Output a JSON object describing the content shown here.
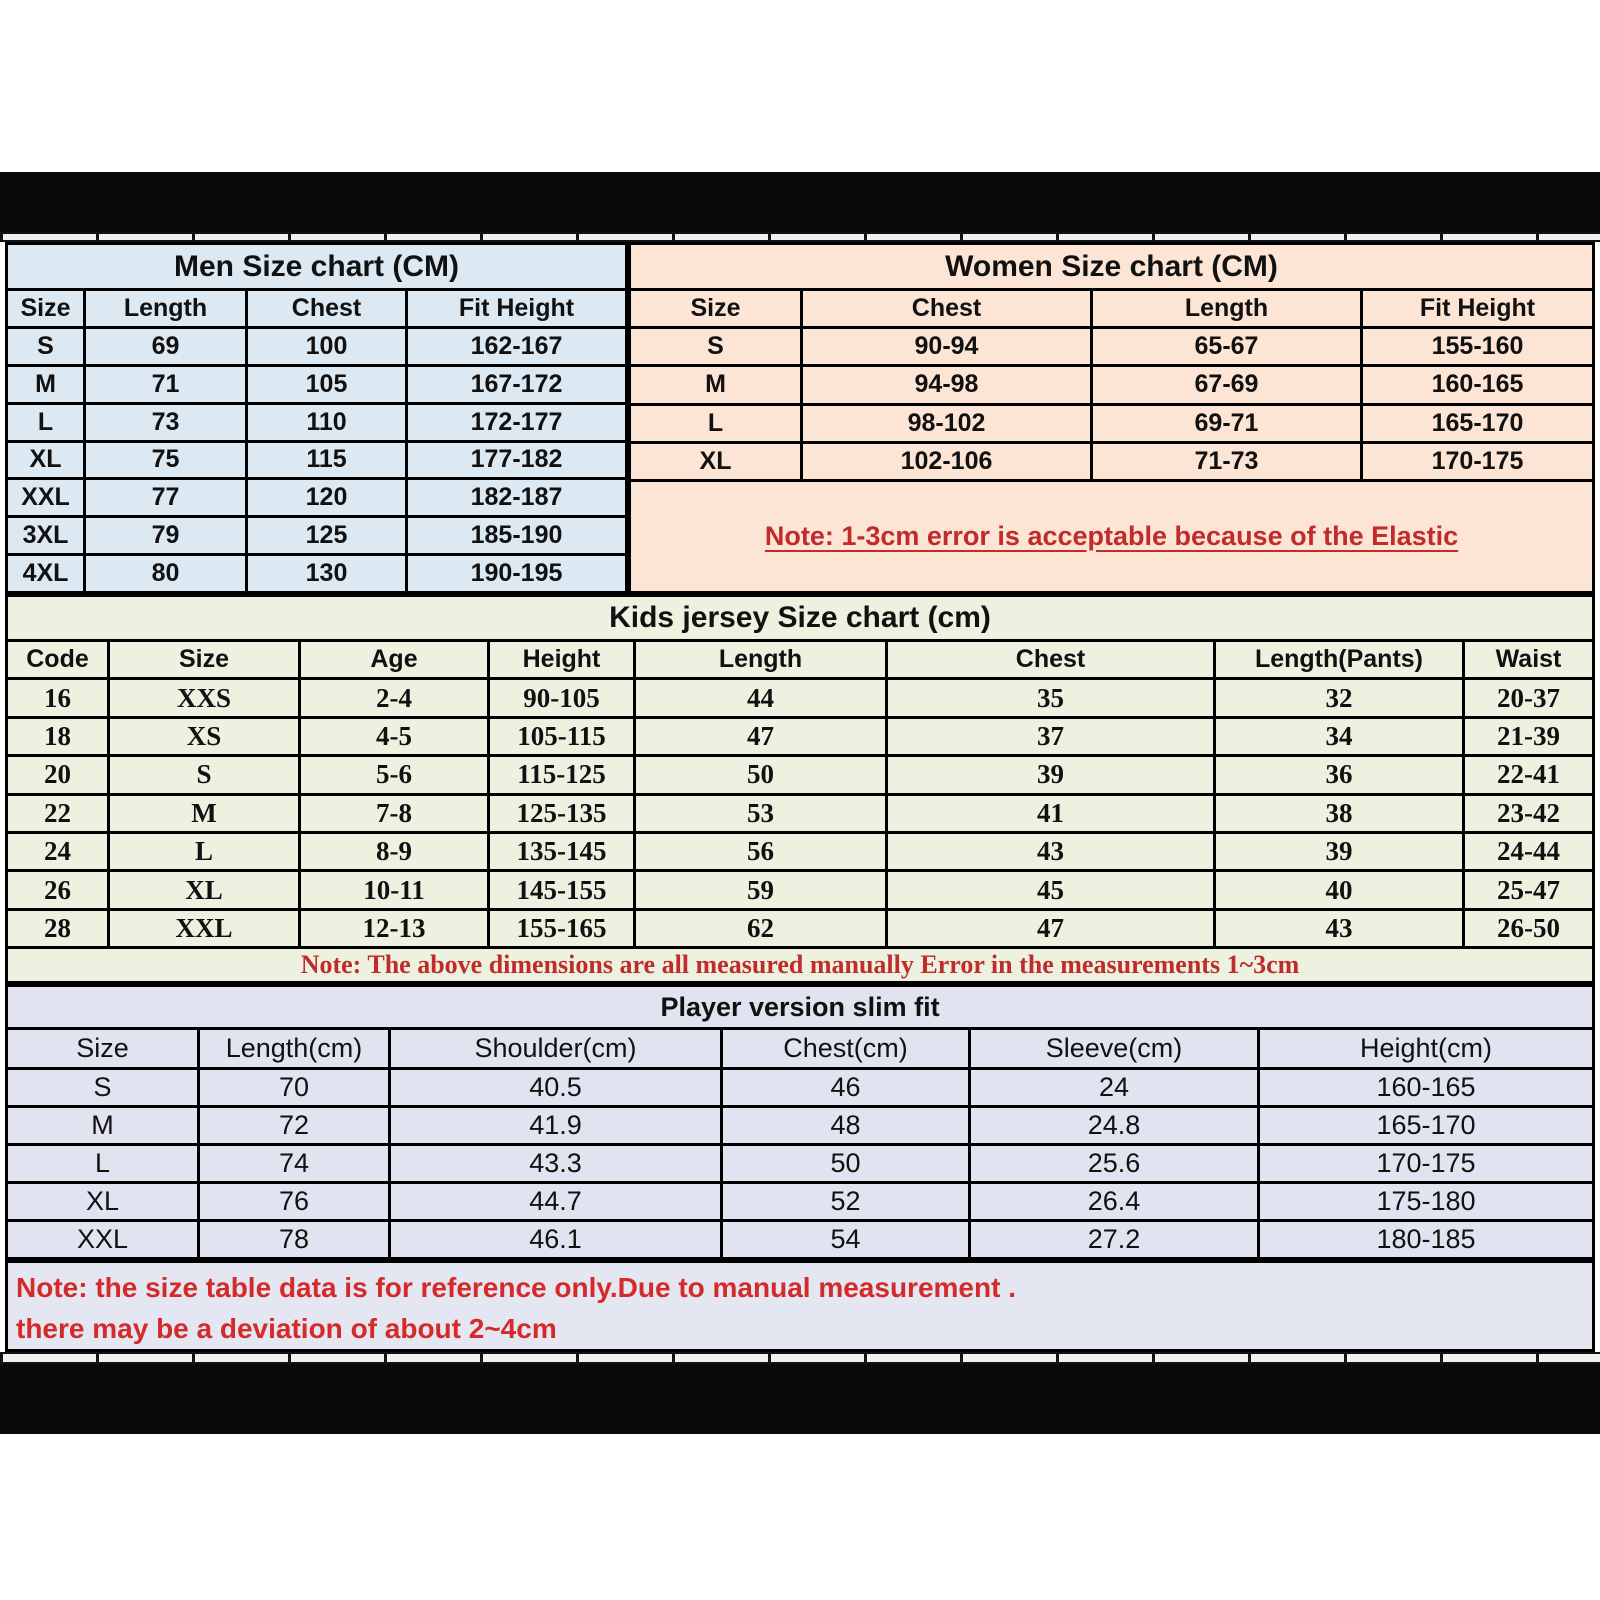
{
  "men": {
    "title": "Men Size chart (CM)",
    "columns": [
      "Size",
      "Length",
      "Chest",
      "Fit Height"
    ],
    "rows": [
      [
        "S",
        "69",
        "100",
        "162-167"
      ],
      [
        "M",
        "71",
        "105",
        "167-172"
      ],
      [
        "L",
        "73",
        "110",
        "172-177"
      ],
      [
        "XL",
        "75",
        "115",
        "177-182"
      ],
      [
        "XXL",
        "77",
        "120",
        "182-187"
      ],
      [
        "3XL",
        "79",
        "125",
        "185-190"
      ],
      [
        "4XL",
        "80",
        "130",
        "190-195"
      ]
    ]
  },
  "women": {
    "title": "Women Size chart (CM)",
    "columns": [
      "Size",
      "Chest",
      "Length",
      "Fit Height"
    ],
    "rows": [
      [
        "S",
        "90-94",
        "65-67",
        "155-160"
      ],
      [
        "M",
        "94-98",
        "67-69",
        "160-165"
      ],
      [
        "L",
        "98-102",
        "69-71",
        "165-170"
      ],
      [
        "XL",
        "102-106",
        "71-73",
        "170-175"
      ]
    ],
    "note": "Note: 1-3cm error is acceptable because of the Elastic"
  },
  "kids": {
    "title": "Kids jersey Size chart (cm)",
    "columns": [
      "Code",
      "Size",
      "Age",
      "Height",
      "Length",
      "Chest",
      "Length(Pants)",
      "Waist"
    ],
    "rows": [
      [
        "16",
        "XXS",
        "2-4",
        "90-105",
        "44",
        "35",
        "32",
        "20-37"
      ],
      [
        "18",
        "XS",
        "4-5",
        "105-115",
        "47",
        "37",
        "34",
        "21-39"
      ],
      [
        "20",
        "S",
        "5-6",
        "115-125",
        "50",
        "39",
        "36",
        "22-41"
      ],
      [
        "22",
        "M",
        "7-8",
        "125-135",
        "53",
        "41",
        "38",
        "23-42"
      ],
      [
        "24",
        "L",
        "8-9",
        "135-145",
        "56",
        "43",
        "39",
        "24-44"
      ],
      [
        "26",
        "XL",
        "10-11",
        "145-155",
        "59",
        "45",
        "40",
        "25-47"
      ],
      [
        "28",
        "XXL",
        "12-13",
        "155-165",
        "62",
        "47",
        "43",
        "26-50"
      ]
    ],
    "note": "Note: The above dimensions are all measured manually Error in the measurements 1~3cm"
  },
  "player": {
    "title": "Player version slim fit",
    "columns": [
      "Size",
      "Length(cm)",
      "Shoulder(cm)",
      "Chest(cm)",
      "Sleeve(cm)",
      "Height(cm)"
    ],
    "rows": [
      [
        "S",
        "70",
        "40.5",
        "46",
        "24",
        "160-165"
      ],
      [
        "M",
        "72",
        "41.9",
        "48",
        "24.8",
        "165-170"
      ],
      [
        "L",
        "74",
        "43.3",
        "50",
        "25.6",
        "170-175"
      ],
      [
        "XL",
        "76",
        "44.7",
        "52",
        "26.4",
        "175-180"
      ],
      [
        "XXL",
        "78",
        "46.1",
        "54",
        "27.2",
        "180-185"
      ]
    ]
  },
  "footer_note": {
    "line1": "Note:  the size table data is for reference only.Due to manual measurement .",
    "line2": "there may be a deviation of about 2~4cm"
  },
  "colors": {
    "men_bg": "#dce8f2",
    "women_bg": "#fce5d4",
    "kids_bg": "#ecf2df",
    "player_bg": "#e1e3f0",
    "note_red": "#c02b2b",
    "footer_red": "#d42a2a",
    "grid_line": "#000000",
    "letterbox": "#0a0a0a"
  }
}
